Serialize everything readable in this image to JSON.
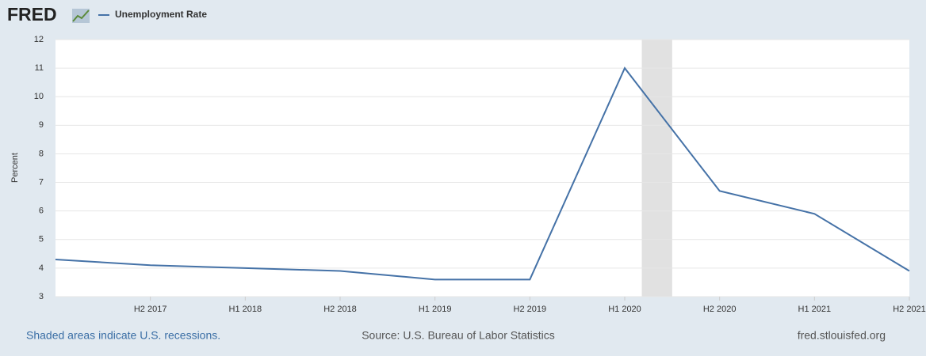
{
  "brand": "FRED",
  "footer": {
    "left": "Shaded areas indicate U.S. recessions.",
    "center": "Source: U.S. Bureau of Labor Statistics",
    "right": "fred.stlouisfed.org"
  },
  "chart_data": {
    "type": "line",
    "ylabel": "Percent",
    "categories": [
      null,
      "H2 2017",
      "H1 2018",
      "H2 2018",
      "H1 2019",
      "H2 2019",
      "H1 2020",
      "H2 2020",
      "H1 2021",
      "H2 2021"
    ],
    "series": [
      {
        "name": "Unemployment Rate",
        "color": "#4572a7",
        "values": [
          4.3,
          4.1,
          4.0,
          3.9,
          3.6,
          3.6,
          11.0,
          6.7,
          5.9,
          3.9
        ]
      }
    ],
    "recessions": [
      [
        6.18,
        6.5
      ]
    ],
    "ylim": [
      3,
      12
    ],
    "yticks": [
      3,
      4,
      5,
      6,
      7,
      8,
      9,
      10,
      11,
      12
    ],
    "grid": true
  }
}
